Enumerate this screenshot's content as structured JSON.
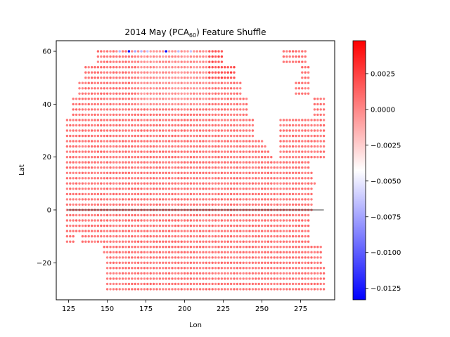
{
  "chart_data": {
    "type": "scatter",
    "title_prefix": "2014 May (PCA",
    "title_sub": "60",
    "title_suffix": ") Feature Shuffle",
    "xlabel": "Lon",
    "ylabel": "Lat",
    "xlim": [
      117,
      297
    ],
    "ylim": [
      -34,
      64
    ],
    "xticks": [
      125,
      150,
      175,
      200,
      225,
      250,
      275
    ],
    "yticks": [
      -20,
      0,
      20,
      40,
      60
    ],
    "colorbar": {
      "min": -0.0133,
      "max": 0.0048,
      "ticks": [
        0.0025,
        0.0,
        -0.0025,
        -0.005,
        -0.0075,
        -0.01,
        -0.0125
      ],
      "tick_labels": [
        "0.0025",
        "0.0000",
        "−0.0025",
        "−0.0050",
        "−0.0075",
        "−0.0100",
        "−0.0125"
      ],
      "colormap": "bwr",
      "low_color": "#0000ff",
      "mid_color": "#ffffff",
      "high_color": "#ff0000"
    },
    "equator_line_lon": [
      124,
      290
    ],
    "grid": {
      "lon_start": 124,
      "lon_end": 290,
      "lon_step": 2,
      "lat_start": -30,
      "lat_end": 60,
      "lat_step": 2
    },
    "typical_value": 0.0006,
    "highlight_points": [
      {
        "lon": 164,
        "lat": 60,
        "value": -0.0133
      },
      {
        "lon": 188,
        "lat": 60,
        "value": -0.0133
      },
      {
        "lon": 158,
        "lat": 60,
        "value": -0.007
      },
      {
        "lon": 168,
        "lat": 60,
        "value": -0.0075
      },
      {
        "lon": 172,
        "lat": 60,
        "value": -0.007
      },
      {
        "lon": 176,
        "lat": 60,
        "value": -0.0065
      },
      {
        "lon": 196,
        "lat": 60,
        "value": -0.0068
      },
      {
        "lon": 204,
        "lat": 60,
        "value": -0.0065
      }
    ]
  }
}
